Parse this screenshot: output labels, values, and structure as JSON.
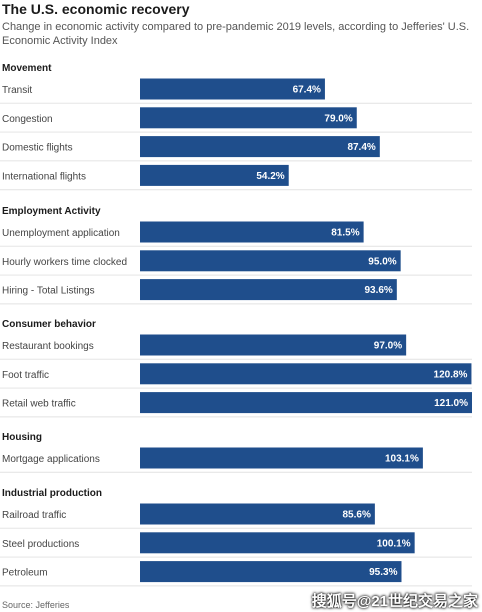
{
  "chart_data": {
    "type": "bar",
    "orientation": "horizontal",
    "title": "The U.S. economic recovery",
    "subtitle": "Change in economic activity compared to pre-pandemic 2019 levels, according to Jefferies' U.S. Economic Activity Index",
    "xlim": [
      0,
      121
    ],
    "grid": false,
    "bar_color": "#1f4e8c",
    "label_color": "#ffffff",
    "groups": [
      {
        "name": "Movement",
        "items": [
          {
            "label": "Transit",
            "value": 67.4,
            "value_label": "67.4%"
          },
          {
            "label": "Congestion",
            "value": 79.0,
            "value_label": "79.0%"
          },
          {
            "label": "Domestic flights",
            "value": 87.4,
            "value_label": "87.4%"
          },
          {
            "label": "International flights",
            "value": 54.2,
            "value_label": "54.2%"
          }
        ]
      },
      {
        "name": "Employment Activity",
        "items": [
          {
            "label": "Unemployment application",
            "value": 81.5,
            "value_label": "81.5%"
          },
          {
            "label": "Hourly workers time clocked",
            "value": 95.0,
            "value_label": "95.0%"
          },
          {
            "label": "Hiring - Total Listings",
            "value": 93.6,
            "value_label": "93.6%"
          }
        ]
      },
      {
        "name": "Consumer behavior",
        "items": [
          {
            "label": "Restaurant bookings",
            "value": 97.0,
            "value_label": "97.0%"
          },
          {
            "label": "Foot traffic",
            "value": 120.8,
            "value_label": "120.8%"
          },
          {
            "label": "Retail web traffic",
            "value": 121.0,
            "value_label": "121.0%"
          }
        ]
      },
      {
        "name": "Housing",
        "items": [
          {
            "label": "Mortgage applications",
            "value": 103.1,
            "value_label": "103.1%"
          }
        ]
      },
      {
        "name": "Industrial production",
        "items": [
          {
            "label": "Railroad traffic",
            "value": 85.6,
            "value_label": "85.6%"
          },
          {
            "label": "Steel productions",
            "value": 100.1,
            "value_label": "100.1%"
          },
          {
            "label": "Petroleum",
            "value": 95.3,
            "value_label": "95.3%"
          }
        ]
      }
    ]
  },
  "source": "Source: Jefferies",
  "watermark": "搜狐号@21世纪交易之家"
}
